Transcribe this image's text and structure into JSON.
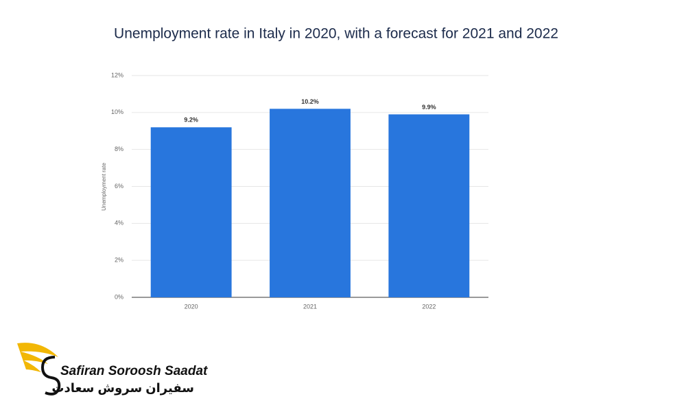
{
  "chart_data": {
    "type": "bar",
    "title": "Unemployment rate in Italy in 2020, with a forecast for 2021 and 2022",
    "y_label": "Unemployment rate",
    "categories": [
      "2020",
      "2021",
      "2022"
    ],
    "values": [
      9.2,
      10.2,
      9.9
    ],
    "value_labels": [
      "9.2%",
      "10.2%",
      "9.9%"
    ],
    "color": "#2876dd",
    "ylim": [
      0,
      12
    ],
    "yticks": [
      {
        "value": 0,
        "label": "0%"
      },
      {
        "value": 2,
        "label": "2%"
      },
      {
        "value": 4,
        "label": "4%"
      },
      {
        "value": 6,
        "label": "6%"
      },
      {
        "value": 8,
        "label": "8%"
      },
      {
        "value": 10,
        "label": "10%"
      },
      {
        "value": 12,
        "label": "12%"
      }
    ],
    "grid": true
  },
  "logo": {
    "name": "Safiran Soroosh Saadat",
    "name_fa": "سفیران سروش سعادت"
  }
}
